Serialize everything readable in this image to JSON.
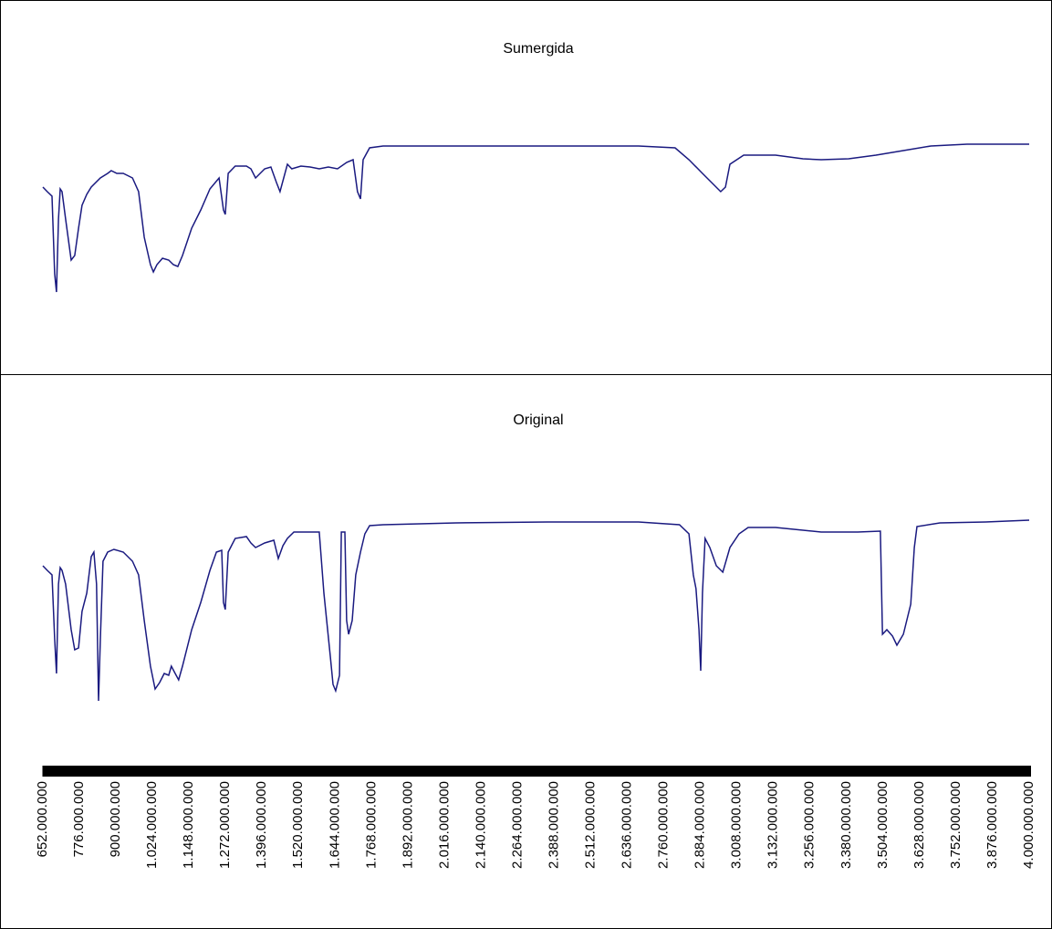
{
  "chart_data": [
    {
      "type": "line",
      "title": "Sumergida",
      "x": [
        652000000,
        667000000,
        683000000,
        692000000,
        698000000,
        705000000,
        711000000,
        717000000,
        729000000,
        748000000,
        760000000,
        773000000,
        785000000,
        801000000,
        816000000,
        847000000,
        872000000,
        884000000,
        903000000,
        925000000,
        956000000,
        977000000,
        996000000,
        1017000000,
        1027000000,
        1039000000,
        1058000000,
        1079000000,
        1095000000,
        1110000000,
        1126000000,
        1157000000,
        1188000000,
        1219000000,
        1250000000,
        1265000000,
        1271000000,
        1281000000,
        1305000000,
        1343000000,
        1358000000,
        1374000000,
        1405000000,
        1426000000,
        1445000000,
        1457000000,
        1482000000,
        1497000000,
        1528000000,
        1559000000,
        1590000000,
        1621000000,
        1652000000,
        1683000000,
        1705000000,
        1720000000,
        1730000000,
        1739000000,
        1761000000,
        1807000000,
        2055000000,
        2365000000,
        2674000000,
        2798000000,
        2845000000,
        2891000000,
        2953000000,
        2969000000,
        2984000000,
        3031000000,
        3139000000,
        3232000000,
        3294000000,
        3387000000,
        3480000000,
        3573000000,
        3666000000,
        3789000000,
        4000000000
      ],
      "series": [
        {
          "color": "#1a1a80",
          "values": [
            185,
            180,
            175,
            90,
            70,
            150,
            183,
            180,
            150,
            105,
            110,
            140,
            165,
            177,
            185,
            195,
            200,
            203,
            200,
            200,
            195,
            180,
            130,
            100,
            92,
            100,
            107,
            105,
            100,
            98,
            110,
            140,
            160,
            183,
            195,
            160,
            155,
            200,
            208,
            208,
            205,
            195,
            205,
            207,
            190,
            180,
            210,
            205,
            208,
            207,
            205,
            207,
            205,
            212,
            215,
            180,
            172,
            215,
            228,
            230,
            230,
            230,
            230,
            228,
            215,
            200,
            180,
            185,
            210,
            220,
            220,
            216,
            215,
            216,
            220,
            225,
            230,
            232,
            232
          ]
        }
      ],
      "xlim": [
        652000000,
        4000000000
      ],
      "ylim": [
        0,
        330
      ]
    },
    {
      "type": "line",
      "title": "Original",
      "x": [
        652000000,
        667000000,
        683000000,
        692000000,
        698000000,
        705000000,
        711000000,
        717000000,
        729000000,
        748000000,
        760000000,
        773000000,
        785000000,
        801000000,
        816000000,
        825000000,
        834000000,
        841000000,
        847000000,
        856000000,
        872000000,
        893000000,
        925000000,
        956000000,
        977000000,
        996000000,
        1017000000,
        1033000000,
        1048000000,
        1064000000,
        1079000000,
        1088000000,
        1101000000,
        1113000000,
        1126000000,
        1157000000,
        1188000000,
        1219000000,
        1241000000,
        1259000000,
        1265000000,
        1271000000,
        1281000000,
        1305000000,
        1343000000,
        1358000000,
        1374000000,
        1405000000,
        1436000000,
        1451000000,
        1467000000,
        1482000000,
        1504000000,
        1528000000,
        1590000000,
        1606000000,
        1628000000,
        1637000000,
        1646000000,
        1659000000,
        1665000000,
        1677000000,
        1683000000,
        1690000000,
        1702000000,
        1714000000,
        1730000000,
        1745000000,
        1761000000,
        1807000000,
        2055000000,
        2365000000,
        2674000000,
        2813000000,
        2845000000,
        2860000000,
        2869000000,
        2879000000,
        2885000000,
        2891000000,
        2900000000,
        2916000000,
        2938000000,
        2960000000,
        2984000000,
        3015000000,
        3046000000,
        3139000000,
        3294000000,
        3418000000,
        3495000000,
        3502000000,
        3517000000,
        3536000000,
        3551000000,
        3573000000,
        3598000000,
        3610000000,
        3619000000,
        3697000000,
        3852000000,
        4000000000
      ],
      "series": [
        {
          "color": "#1a1a80",
          "values": [
            180,
            175,
            170,
            100,
            62,
            160,
            178,
            175,
            160,
            110,
            88,
            90,
            130,
            150,
            190,
            195,
            160,
            32,
            100,
            185,
            195,
            198,
            195,
            185,
            170,
            120,
            70,
            45,
            52,
            62,
            60,
            70,
            62,
            55,
            70,
            110,
            140,
            175,
            195,
            197,
            140,
            132,
            195,
            210,
            212,
            205,
            200,
            205,
            208,
            188,
            202,
            210,
            217,
            217,
            217,
            150,
            80,
            50,
            43,
            60,
            217,
            217,
            120,
            105,
            120,
            170,
            195,
            215,
            224,
            225,
            227,
            228,
            228,
            225,
            215,
            170,
            155,
            110,
            65,
            150,
            210,
            200,
            180,
            173,
            200,
            215,
            222,
            222,
            217,
            217,
            218,
            105,
            110,
            103,
            93,
            105,
            138,
            200,
            223,
            227,
            228,
            230
          ]
        }
      ],
      "xlim": [
        652000000,
        4000000000
      ],
      "ylim": [
        0,
        330
      ],
      "xticks": [
        {
          "value": 652000000,
          "label": "652.000.000"
        },
        {
          "value": 776000000,
          "label": "776.000.000"
        },
        {
          "value": 900000000,
          "label": "900.000.000"
        },
        {
          "value": 1024000000,
          "label": "1.024.000.000"
        },
        {
          "value": 1148000000,
          "label": "1.148.000.000"
        },
        {
          "value": 1272000000,
          "label": "1.272.000.000"
        },
        {
          "value": 1396000000,
          "label": "1.396.000.000"
        },
        {
          "value": 1520000000,
          "label": "1.520.000.000"
        },
        {
          "value": 1644000000,
          "label": "1.644.000.000"
        },
        {
          "value": 1768000000,
          "label": "1.768.000.000"
        },
        {
          "value": 1892000000,
          "label": "1.892.000.000"
        },
        {
          "value": 2016000000,
          "label": "2.016.000.000"
        },
        {
          "value": 2140000000,
          "label": "2.140.000.000"
        },
        {
          "value": 2264000000,
          "label": "2.264.000.000"
        },
        {
          "value": 2388000000,
          "label": "2.388.000.000"
        },
        {
          "value": 2512000000,
          "label": "2.512.000.000"
        },
        {
          "value": 2636000000,
          "label": "2.636.000.000"
        },
        {
          "value": 2760000000,
          "label": "2.760.000.000"
        },
        {
          "value": 2884000000,
          "label": "2.884.000.000"
        },
        {
          "value": 3008000000,
          "label": "3.008.000.000"
        },
        {
          "value": 3132000000,
          "label": "3.132.000.000"
        },
        {
          "value": 3256000000,
          "label": "3.256.000.000"
        },
        {
          "value": 3380000000,
          "label": "3.380.000.000"
        },
        {
          "value": 3504000000,
          "label": "3.504.000.000"
        },
        {
          "value": 3628000000,
          "label": "3.628.000.000"
        },
        {
          "value": 3752000000,
          "label": "3.752.000.000"
        },
        {
          "value": 3876000000,
          "label": "3.876.000.000"
        },
        {
          "value": 4000000000,
          "label": "4.000.000.000"
        }
      ]
    }
  ]
}
